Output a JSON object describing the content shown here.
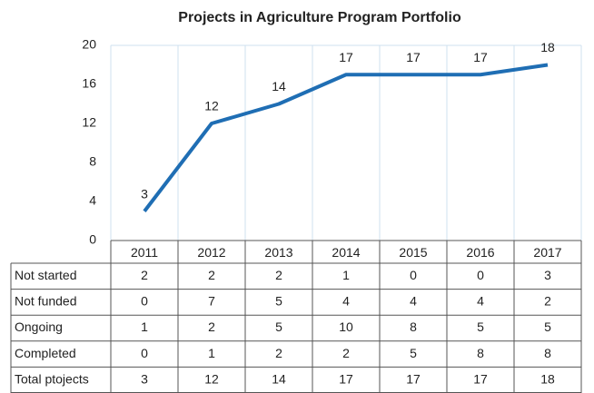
{
  "chart_data": {
    "type": "line",
    "title": "Projects in Agriculture Program Portfolio",
    "categories": [
      "2011",
      "2012",
      "2013",
      "2014",
      "2015",
      "2016",
      "2017"
    ],
    "series": [
      {
        "name": "Total ptojects",
        "color": "#1f6eb4",
        "values": [
          3,
          12,
          14,
          17,
          17,
          17,
          18
        ]
      }
    ],
    "ylim": [
      0,
      20
    ],
    "yticks": [
      0,
      4,
      8,
      12,
      16,
      20
    ],
    "grid": false,
    "data_table": [
      {
        "name": "Not started",
        "values": [
          2,
          2,
          2,
          1,
          0,
          0,
          3
        ]
      },
      {
        "name": "Not funded",
        "values": [
          0,
          7,
          5,
          4,
          4,
          4,
          2
        ]
      },
      {
        "name": "Ongoing",
        "values": [
          1,
          2,
          5,
          10,
          8,
          5,
          5
        ]
      },
      {
        "name": "Completed",
        "values": [
          0,
          1,
          2,
          2,
          5,
          8,
          8
        ]
      }
    ]
  }
}
